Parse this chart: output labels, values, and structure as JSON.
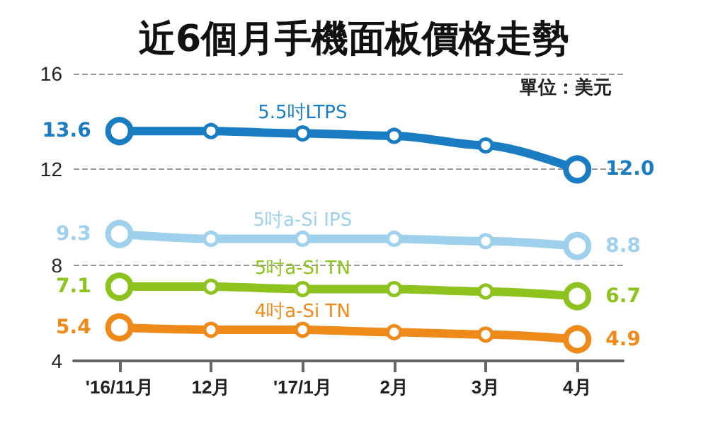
{
  "chart_data": {
    "type": "line",
    "title": "近6個月手機面板價格走勢",
    "annotations": [
      "單位：美元"
    ],
    "categories": [
      "'16/11月",
      "12月",
      "'17/1月",
      "2月",
      "3月",
      "4月"
    ],
    "ylim": [
      4,
      16
    ],
    "yticks": [
      4,
      8,
      12,
      16
    ],
    "grid": "y",
    "legend": false,
    "marker": "circle",
    "line_style": "solid",
    "series": [
      {
        "name": "5.5吋LTPS",
        "color": "#1a7cc1",
        "values": [
          13.6,
          13.6,
          13.5,
          13.4,
          13.0,
          12.0
        ],
        "value_labels": [
          "13.6",
          null,
          null,
          null,
          null,
          "12.0"
        ]
      },
      {
        "name": "5吋a-Si IPS",
        "color": "#9fd0ec",
        "values": [
          9.3,
          9.1,
          9.1,
          9.1,
          9.0,
          8.8
        ],
        "value_labels": [
          "9.3",
          null,
          null,
          null,
          null,
          "8.8"
        ]
      },
      {
        "name": "5吋a-Si TN",
        "color": "#8dc21f",
        "values": [
          7.1,
          7.1,
          7.0,
          7.0,
          6.9,
          6.7
        ],
        "value_labels": [
          "7.1",
          null,
          null,
          null,
          null,
          "6.7"
        ]
      },
      {
        "name": "4吋a-Si TN",
        "color": "#ee8a1a",
        "values": [
          5.4,
          5.3,
          5.3,
          5.2,
          5.1,
          4.9
        ],
        "value_labels": [
          "5.4",
          null,
          null,
          null,
          null,
          "4.9"
        ]
      }
    ]
  }
}
